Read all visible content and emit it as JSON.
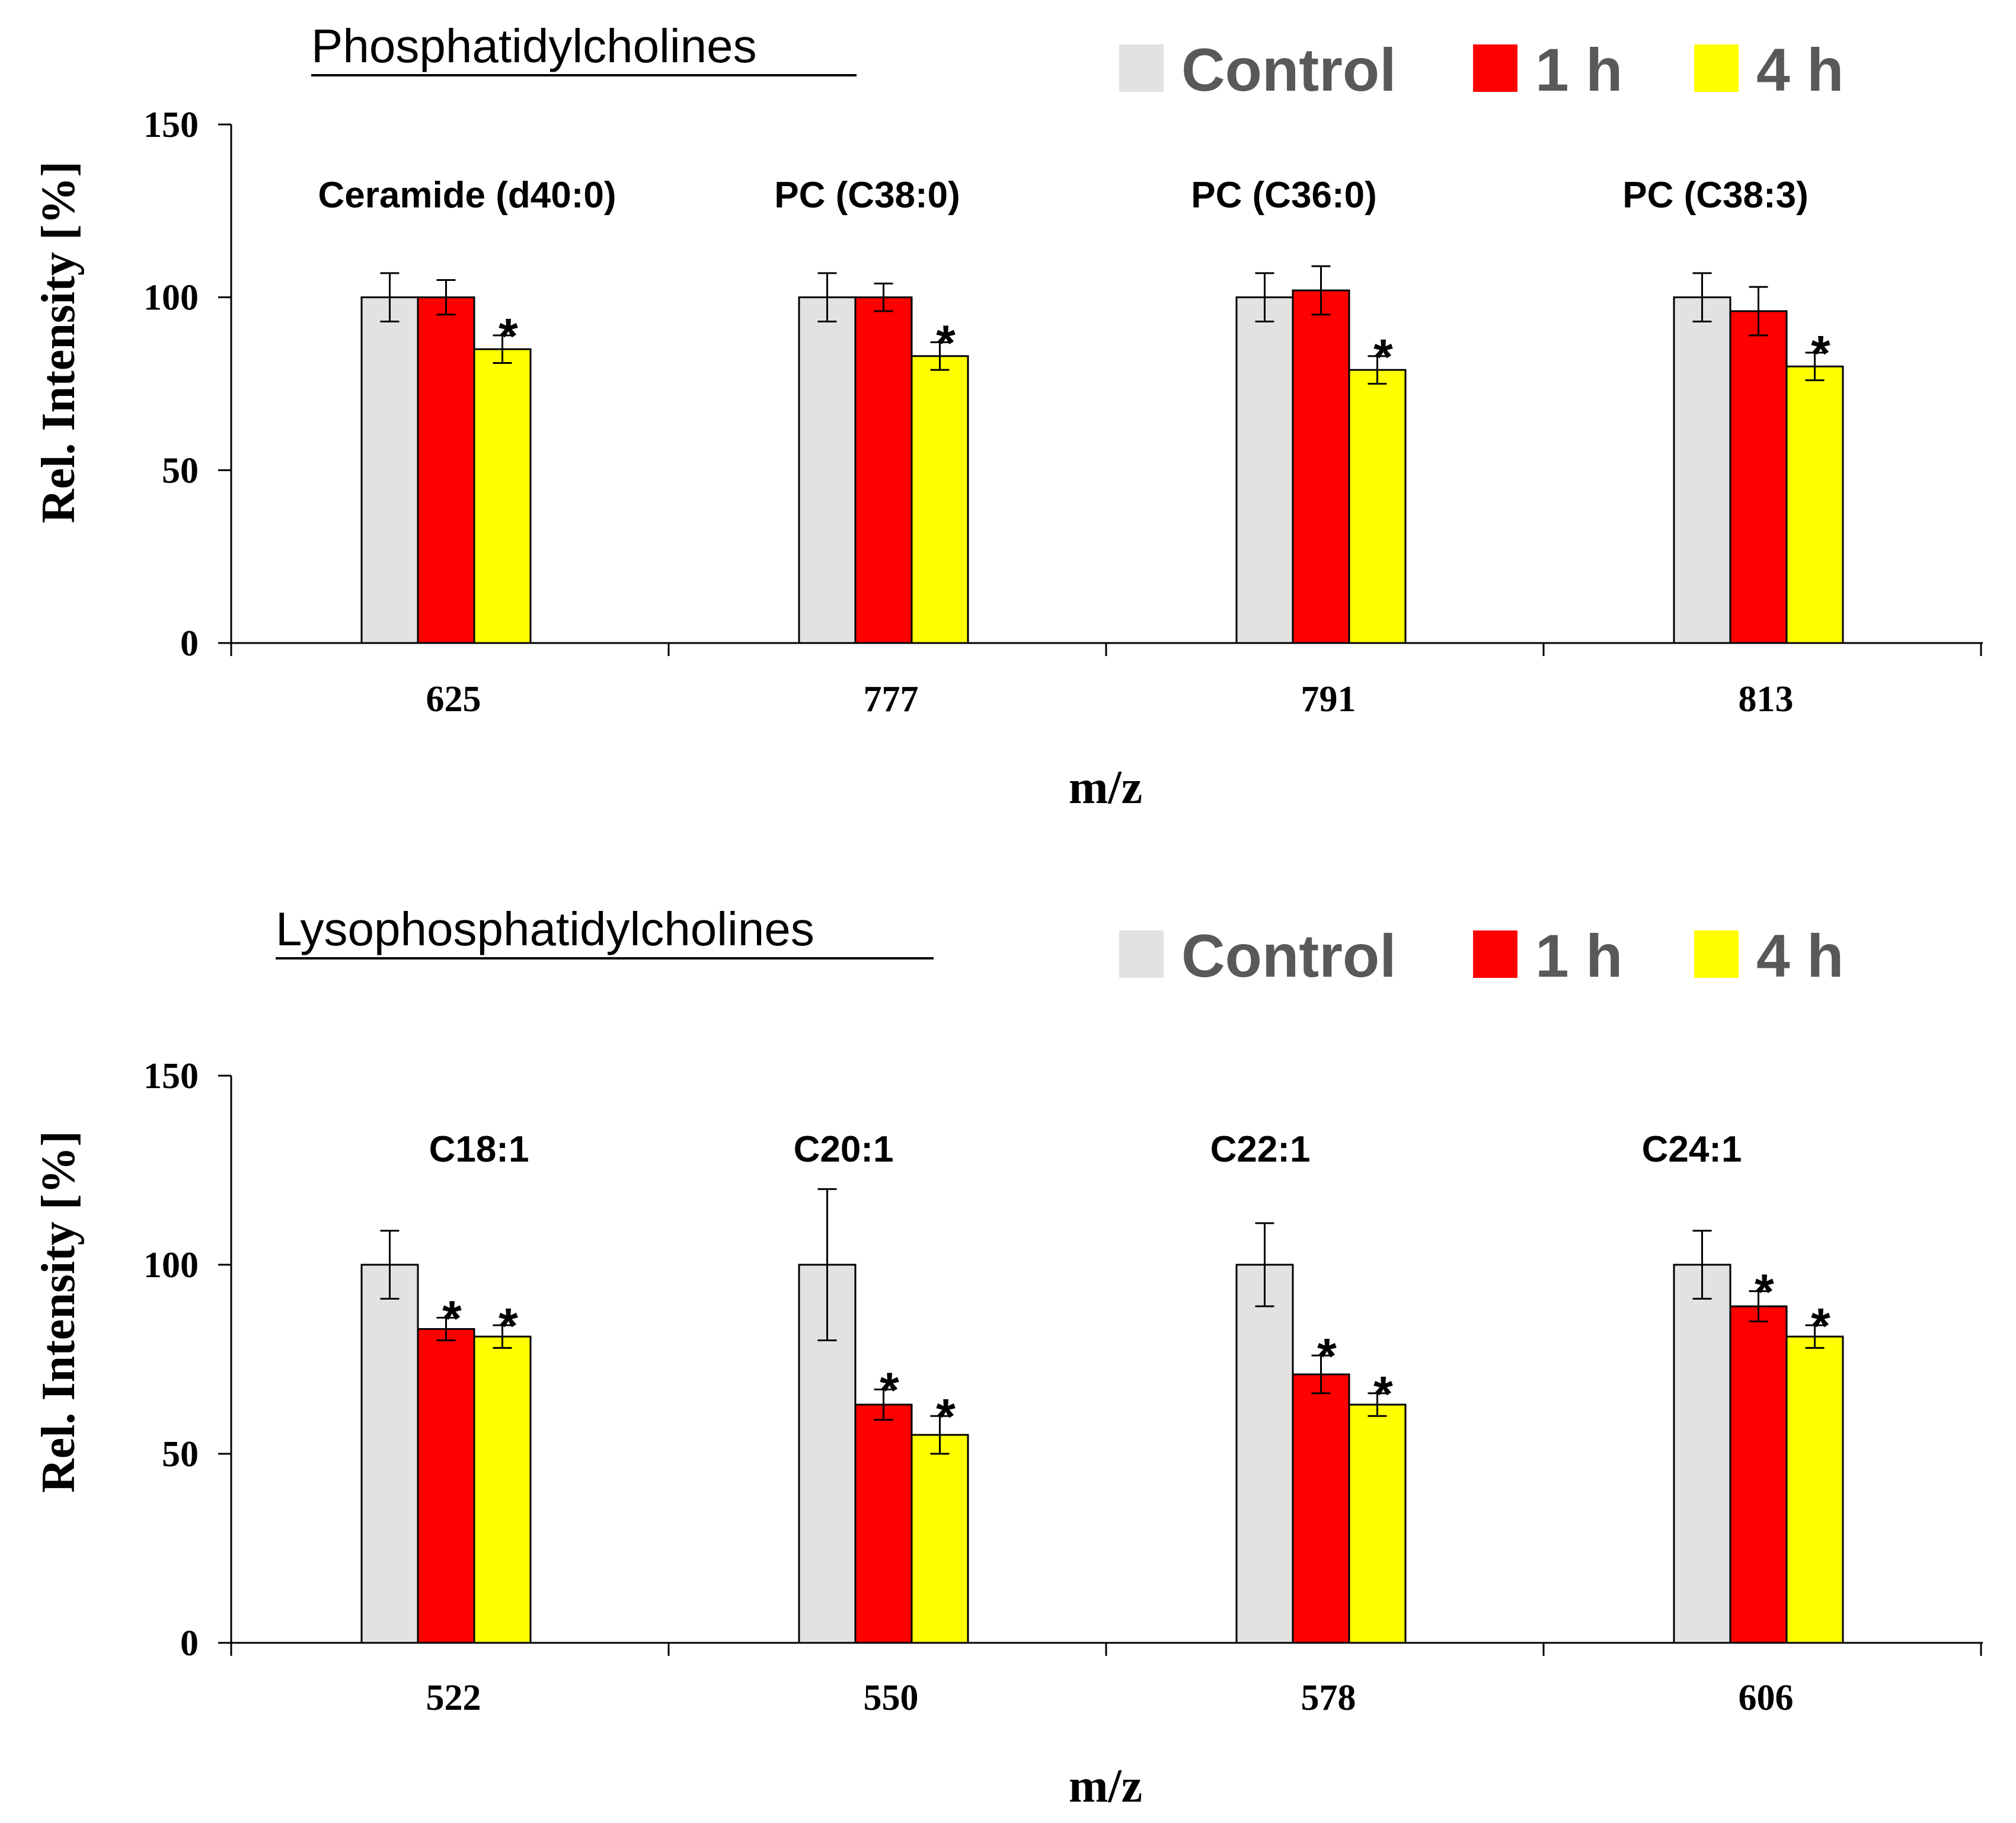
{
  "chart_data": [
    {
      "type": "bar",
      "title": "Phosphatidylcholines",
      "xlabel": "m/z",
      "ylabel": "Rel. Intensity [%]",
      "ylim": [
        0,
        150
      ],
      "yticks": [
        0,
        50,
        100,
        150
      ],
      "legend": {
        "placement": "top-right",
        "entries": [
          "Control",
          "1 h",
          "4 h"
        ]
      },
      "categories": [
        "625",
        "777",
        "791",
        "813"
      ],
      "group_labels": [
        "Ceramide (d40:0)",
        "PC (C38:0)",
        "PC (C36:0)",
        "PC (C38:3)"
      ],
      "series": [
        {
          "name": "Control",
          "color": "#e2e2e2",
          "values": [
            100,
            100,
            100,
            100
          ],
          "errors": [
            7,
            7,
            7,
            7
          ],
          "significant": [
            false,
            false,
            false,
            false
          ]
        },
        {
          "name": "1 h",
          "color": "#ff0000",
          "values": [
            100,
            100,
            102,
            96
          ],
          "errors": [
            5,
            4,
            7,
            7
          ],
          "significant": [
            false,
            false,
            false,
            false
          ]
        },
        {
          "name": "4 h",
          "color": "#ffff00",
          "values": [
            85,
            83,
            79,
            80
          ],
          "errors": [
            4,
            4,
            4,
            4
          ],
          "significant": [
            true,
            true,
            true,
            true
          ]
        }
      ],
      "significance_marker": "*"
    },
    {
      "type": "bar",
      "title": "Lysophosphatidylcholines",
      "xlabel": "m/z",
      "ylabel": "Rel. Intensity [%]",
      "ylim": [
        0,
        150
      ],
      "yticks": [
        0,
        50,
        100,
        150
      ],
      "legend": {
        "placement": "top-right",
        "entries": [
          "Control",
          "1 h",
          "4 h"
        ]
      },
      "categories": [
        "522",
        "550",
        "578",
        "606"
      ],
      "group_labels": [
        "C18:1",
        "C20:1",
        "C22:1",
        "C24:1"
      ],
      "series": [
        {
          "name": "Control",
          "color": "#e2e2e2",
          "values": [
            100,
            100,
            100,
            100
          ],
          "errors": [
            9,
            20,
            11,
            9
          ],
          "significant": [
            false,
            false,
            false,
            false
          ]
        },
        {
          "name": "1 h",
          "color": "#ff0000",
          "values": [
            83,
            63,
            71,
            89
          ],
          "errors": [
            3,
            4,
            5,
            4
          ],
          "significant": [
            true,
            true,
            true,
            true
          ]
        },
        {
          "name": "4 h",
          "color": "#ffff00",
          "values": [
            81,
            55,
            63,
            81
          ],
          "errors": [
            3,
            5,
            3,
            3
          ],
          "significant": [
            true,
            true,
            true,
            true
          ]
        }
      ],
      "significance_marker": "*"
    }
  ]
}
